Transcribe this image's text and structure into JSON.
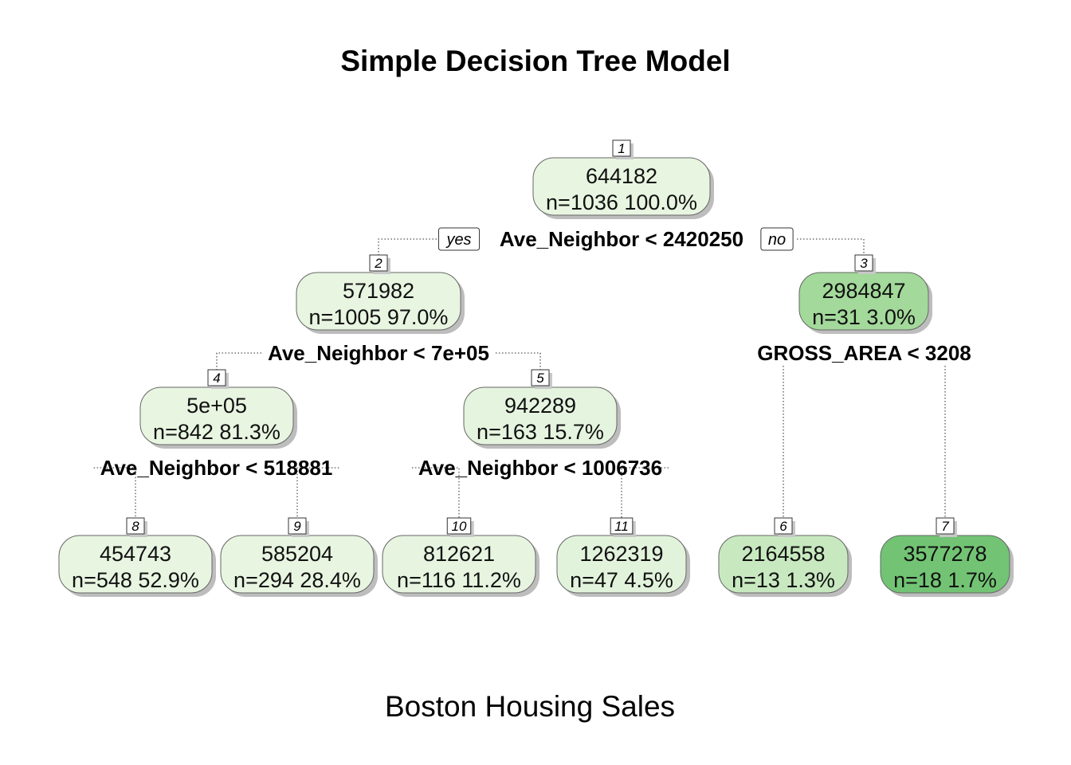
{
  "title": "Simple Decision Tree Model",
  "subtitle": "Boston Housing Sales",
  "branch_labels": {
    "yes": "yes",
    "no": "no"
  },
  "nodes": [
    {
      "id": "1",
      "value": "644182",
      "stats": "n=1036  100.0%",
      "fill": "#e8f5e1"
    },
    {
      "id": "2",
      "value": "571982",
      "stats": "n=1005  97.0%",
      "fill": "#e8f5e1"
    },
    {
      "id": "3",
      "value": "2984847",
      "stats": "n=31  3.0%",
      "fill": "#a3d99a"
    },
    {
      "id": "4",
      "value": "5e+05",
      "stats": "n=842  81.3%",
      "fill": "#e8f5e1"
    },
    {
      "id": "5",
      "value": "942289",
      "stats": "n=163  15.7%",
      "fill": "#e5f4df"
    },
    {
      "id": "8",
      "value": "454743",
      "stats": "n=548  52.9%",
      "fill": "#e8f5e1"
    },
    {
      "id": "9",
      "value": "585204",
      "stats": "n=294  28.4%",
      "fill": "#e8f5e1"
    },
    {
      "id": "10",
      "value": "812621",
      "stats": "n=116  11.2%",
      "fill": "#e6f4e0"
    },
    {
      "id": "11",
      "value": "1262319",
      "stats": "n=47  4.5%",
      "fill": "#e2f3dc"
    },
    {
      "id": "6",
      "value": "2164558",
      "stats": "n=13  1.3%",
      "fill": "#c8e9c0"
    },
    {
      "id": "7",
      "value": "3577278",
      "stats": "n=18  1.7%",
      "fill": "#72c474"
    }
  ],
  "splits": [
    {
      "node": "1",
      "label": "Ave_Neighbor < 2420250"
    },
    {
      "node": "2",
      "label": "Ave_Neighbor < 7e+05"
    },
    {
      "node": "3",
      "label": "GROSS_AREA < 3208"
    },
    {
      "node": "4",
      "label": "Ave_Neighbor < 518881"
    },
    {
      "node": "5",
      "label": "Ave_Neighbor < 1006736"
    }
  ]
}
